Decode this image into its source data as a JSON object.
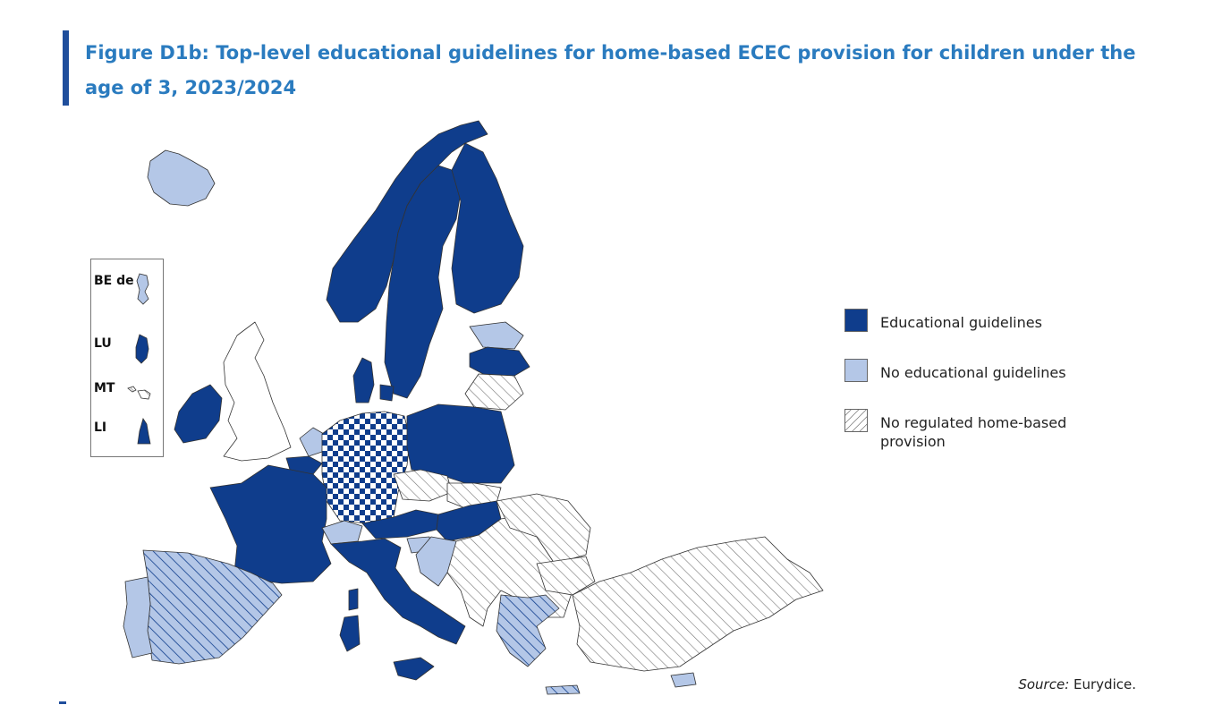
{
  "title": "Figure D1b: Top-level educational guidelines for home-based ECEC provision for children under the age of 3, 2023/2024",
  "colors": {
    "educational_guidelines": "#0f3d8c",
    "no_educational_guidelines": "#b4c7e7",
    "no_regulated_provision": "hatch",
    "title": "#2a7bbf"
  },
  "legend": {
    "items": [
      {
        "key": "educational_guidelines",
        "label": "Educational guidelines"
      },
      {
        "key": "no_educational_guidelines",
        "label": "No educational guidelines"
      },
      {
        "key": "no_regulated_provision",
        "label": "No regulated home-based provision"
      }
    ]
  },
  "inset": {
    "items": [
      {
        "code": "BE de",
        "category": "no_educational_guidelines"
      },
      {
        "code": "LU",
        "category": "educational_guidelines"
      },
      {
        "code": "MT",
        "category": "no_regulated_provision"
      },
      {
        "code": "LI",
        "category": "educational_guidelines"
      }
    ]
  },
  "source": {
    "label": "Source:",
    "value": "Eurydice."
  }
}
